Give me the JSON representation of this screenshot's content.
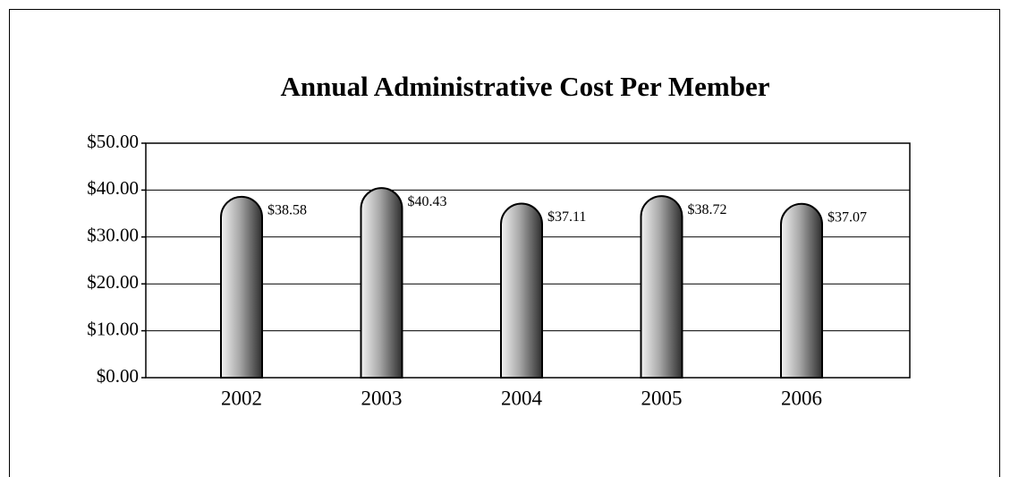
{
  "chart_data": {
    "type": "bar",
    "title": "Annual Administrative Cost Per Member",
    "categories": [
      "2002",
      "2003",
      "2004",
      "2005",
      "2006"
    ],
    "values": [
      38.58,
      40.43,
      37.11,
      38.72,
      37.07
    ],
    "value_labels": [
      "$38.58",
      "$40.43",
      "$37.11",
      "$38.72",
      "$37.07"
    ],
    "ylim": [
      0,
      50
    ],
    "yticks": [
      {
        "value": 0,
        "label": "$0.00"
      },
      {
        "value": 10,
        "label": "$10.00"
      },
      {
        "value": 20,
        "label": "$20.00"
      },
      {
        "value": 30,
        "label": "$30.00"
      },
      {
        "value": 40,
        "label": "$40.00"
      },
      {
        "value": 50,
        "label": "$50.00"
      }
    ],
    "grid": true
  }
}
